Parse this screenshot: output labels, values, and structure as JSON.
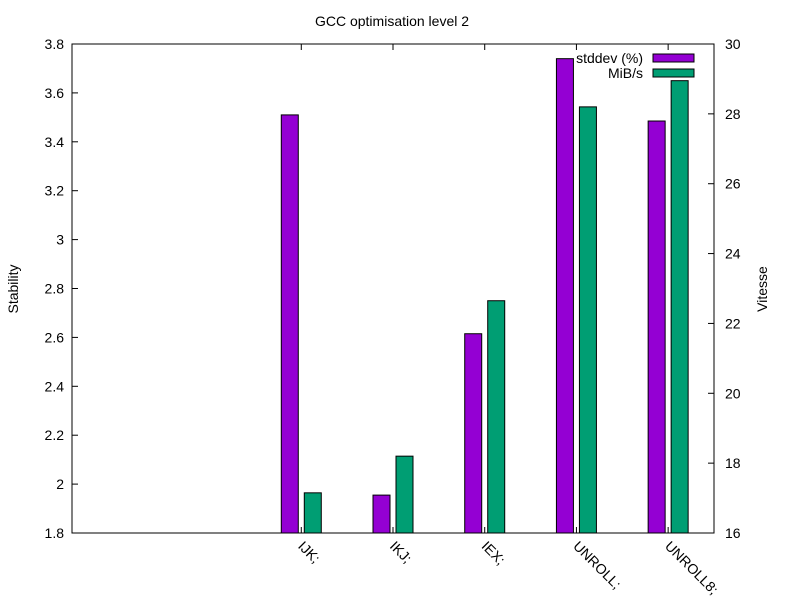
{
  "chart_data": {
    "type": "bar",
    "title": "GCC optimisation level 2",
    "ylabel": "Stability",
    "y2label": "Vitesse",
    "categories": [
      "IJK;",
      "IKJ;",
      "IEX;",
      "UNROLL;",
      "UNROLL8;"
    ],
    "category_slots": [
      0,
      1,
      2,
      3,
      4,
      5,
      6
    ],
    "category_offset": 2,
    "series": [
      {
        "name": "stddev (%)",
        "axis": "y",
        "color": "#9400d3",
        "values": [
          3.51,
          1.955,
          2.615,
          3.74,
          3.485
        ]
      },
      {
        "name": "MiB/s",
        "axis": "y2",
        "color": "#009e73",
        "values": [
          17.15,
          18.2,
          22.65,
          28.2,
          28.95
        ]
      }
    ],
    "ylim": [
      1.8,
      3.8
    ],
    "y2lim": [
      16,
      30
    ],
    "yticks": [
      "1.8",
      "2",
      "2.2",
      "2.4",
      "2.6",
      "2.8",
      "3",
      "3.2",
      "3.4",
      "3.6",
      "3.8"
    ],
    "y2ticks": [
      "16",
      "18",
      "20",
      "22",
      "24",
      "26",
      "28",
      "30"
    ],
    "legend_position": "top-right",
    "grid": false
  }
}
